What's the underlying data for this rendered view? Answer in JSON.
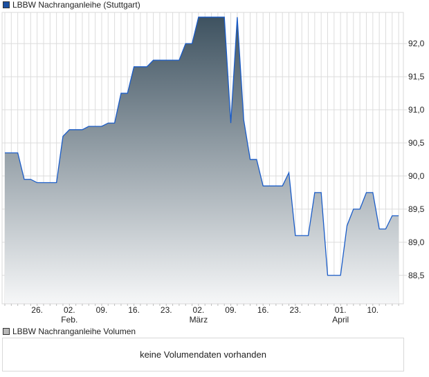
{
  "legend_price": "LBBW Nachranganleihe (Stuttgart)",
  "legend_volume": "LBBW Nachranganleihe Volumen",
  "volume_message": "keine Volumendaten vorhanden",
  "colors": {
    "line": "#1a5cc8",
    "fill_top": "#3e5260",
    "fill_bottom": "#f6f7f8",
    "grid": "#dcdcdc",
    "price_square": "#1a4fa0",
    "volume_square": "#b8b8b8"
  },
  "chart_data": {
    "type": "area",
    "title": "LBBW Nachranganleihe (Stuttgart)",
    "xlabel": "",
    "ylabel": "",
    "x_unit": "trading day index",
    "xlim": [
      0,
      61.8
    ],
    "ylim": [
      88.07,
      92.45
    ],
    "grid": true,
    "y_ticks": [
      "88,5",
      "89,0",
      "89,5",
      "90,0",
      "90,5",
      "91,0",
      "91,5",
      "92,0"
    ],
    "y_tick_values": [
      88.5,
      89.0,
      89.5,
      90.0,
      90.5,
      91.0,
      91.5,
      92.0
    ],
    "x_ticks": [
      {
        "i": 5,
        "label": "26.",
        "month": ""
      },
      {
        "i": 10,
        "label": "02.",
        "month": "Feb."
      },
      {
        "i": 15,
        "label": "09.",
        "month": ""
      },
      {
        "i": 20,
        "label": "16.",
        "month": ""
      },
      {
        "i": 25,
        "label": "23.",
        "month": ""
      },
      {
        "i": 30,
        "label": "02.",
        "month": "März"
      },
      {
        "i": 35,
        "label": "09.",
        "month": ""
      },
      {
        "i": 40,
        "label": "16.",
        "month": ""
      },
      {
        "i": 45,
        "label": "23.",
        "month": ""
      },
      {
        "i": 52,
        "label": "01.",
        "month": "April"
      },
      {
        "i": 57,
        "label": "10.",
        "month": ""
      }
    ],
    "series": [
      {
        "name": "LBBW Nachranganleihe (Stuttgart)",
        "x": [
          0,
          2,
          3,
          4,
          5,
          8,
          9,
          10,
          12,
          13,
          15,
          16,
          17,
          18,
          19,
          20,
          22,
          23,
          27,
          28,
          29,
          30,
          34,
          35,
          36,
          37,
          38,
          39,
          40,
          43,
          44,
          45,
          47,
          48,
          49,
          50,
          52,
          53,
          54,
          55,
          56,
          57,
          58,
          59,
          60,
          61
        ],
        "y": [
          90.35,
          90.35,
          89.95,
          89.95,
          89.9,
          89.9,
          90.6,
          90.7,
          90.7,
          90.75,
          90.75,
          90.8,
          90.8,
          91.25,
          91.25,
          91.65,
          91.65,
          91.75,
          91.75,
          92.0,
          92.0,
          92.4,
          92.4,
          90.8,
          92.4,
          90.85,
          90.25,
          90.25,
          89.85,
          89.85,
          90.05,
          89.1,
          89.1,
          89.75,
          89.75,
          88.5,
          88.5,
          89.25,
          89.5,
          89.5,
          89.75,
          89.75,
          89.2,
          89.2,
          89.4,
          89.4
        ]
      }
    ]
  }
}
